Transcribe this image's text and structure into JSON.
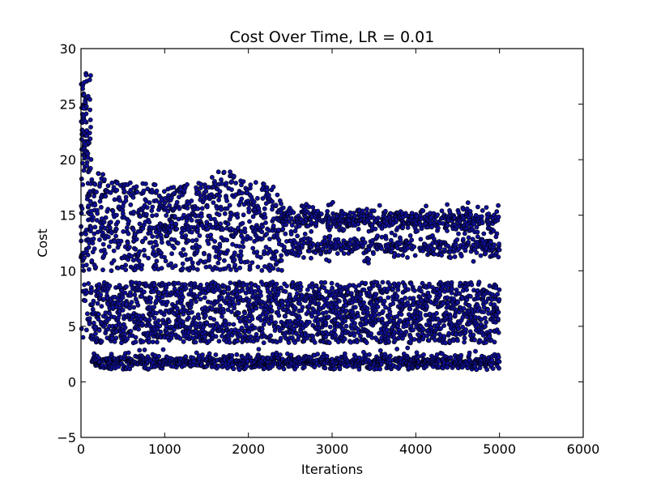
{
  "chart_data": {
    "type": "scatter",
    "title": "Cost Over Time, LR = 0.01",
    "xlabel": "Iterations",
    "ylabel": "Cost",
    "xlim": [
      0,
      6000
    ],
    "ylim": [
      -5,
      30
    ],
    "xticks": [
      0,
      1000,
      2000,
      3000,
      4000,
      5000,
      6000
    ],
    "yticks": [
      -5,
      0,
      5,
      10,
      15,
      20,
      25,
      30
    ],
    "xtick_labels": [
      "0",
      "1000",
      "2000",
      "3000",
      "4000",
      "5000",
      "6000"
    ],
    "ytick_labels": [
      "−5",
      "0",
      "5",
      "10",
      "15",
      "20",
      "25",
      "30"
    ],
    "grid": false,
    "marker_color": "#0f0f9a",
    "marker_edge_color": "#000000",
    "n_points": 5000,
    "series": [
      {
        "x": [
          0,
          20,
          40,
          60,
          80,
          100,
          150,
          200,
          300,
          500,
          800,
          1000,
          1500,
          1700,
          2000,
          2300,
          2400,
          2600,
          3000,
          3500,
          4000,
          4500,
          4900,
          5000
        ],
        "y": [
          20,
          27.5,
          24,
          28,
          21,
          19.5,
          19,
          19,
          18.5,
          18,
          18,
          17.5,
          18,
          19.3,
          18,
          18,
          16,
          16,
          15.5,
          15.3,
          15.3,
          15.3,
          16.5,
          15
        ],
        "note_band": "upper"
      }
    ],
    "bands": [
      {
        "x_start": 0,
        "x_end": 5000,
        "y_center": 1.8,
        "spread": 0.4
      },
      {
        "x_start": 0,
        "x_end": 5000,
        "y_center": 5.5,
        "spread": 2.5
      },
      {
        "x_start": 0,
        "x_end": 2400,
        "y_center": 12.5,
        "spread": 2.5
      },
      {
        "x_start": 2400,
        "x_end": 5000,
        "y_center": 12.3,
        "spread": 0.7
      },
      {
        "x_start": 0,
        "x_end": 2400,
        "y_center": 15.5,
        "spread": 2.5
      },
      {
        "x_start": 2400,
        "x_end": 5000,
        "y_center": 14.8,
        "spread": 0.8
      }
    ]
  }
}
